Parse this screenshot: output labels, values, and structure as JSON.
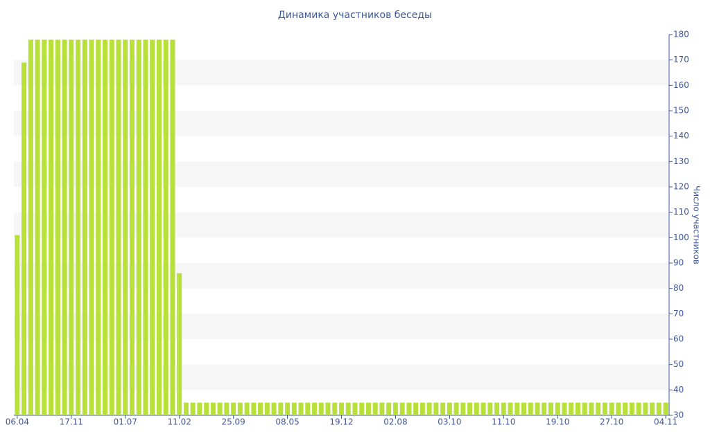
{
  "chart_data": {
    "type": "bar",
    "title": "Динамика участников беседы",
    "y_label": "Число участников",
    "categories": [
      "06.04",
      null,
      null,
      null,
      null,
      null,
      null,
      null,
      "17.11",
      null,
      null,
      null,
      null,
      null,
      null,
      null,
      "01.07",
      null,
      null,
      null,
      null,
      null,
      null,
      null,
      "11.02",
      null,
      null,
      null,
      null,
      null,
      null,
      null,
      "25.09",
      null,
      null,
      null,
      null,
      null,
      null,
      null,
      "08.05",
      null,
      null,
      null,
      null,
      null,
      null,
      null,
      "19.12",
      null,
      null,
      null,
      null,
      null,
      null,
      null,
      "02.08",
      null,
      null,
      null,
      null,
      null,
      null,
      null,
      "03.10",
      null,
      null,
      null,
      null,
      null,
      null,
      null,
      "11.10",
      null,
      null,
      null,
      null,
      null,
      null,
      null,
      "19.10",
      null,
      null,
      null,
      null,
      null,
      null,
      null,
      "27.10",
      null,
      null,
      null,
      null,
      null,
      null,
      null,
      "04.11"
    ],
    "values": [
      101,
      169,
      178,
      178,
      178,
      178,
      178,
      178,
      178,
      178,
      178,
      178,
      178,
      178,
      178,
      178,
      178,
      178,
      178,
      178,
      178,
      178,
      178,
      178,
      86,
      35,
      35,
      35,
      35,
      35,
      35,
      35,
      35,
      35,
      35,
      35,
      35,
      35,
      35,
      35,
      35,
      35,
      35,
      35,
      35,
      35,
      35,
      35,
      35,
      35,
      35,
      35,
      35,
      35,
      35,
      35,
      35,
      35,
      35,
      35,
      35,
      35,
      35,
      35,
      35,
      35,
      35,
      35,
      35,
      35,
      35,
      35,
      35,
      35,
      35,
      35,
      35,
      35,
      35,
      35,
      35,
      35,
      35,
      35,
      35,
      35,
      35,
      35,
      35,
      35,
      35,
      35,
      35,
      35,
      35,
      35,
      35
    ],
    "color": "#b8e03a",
    "ylim": [
      30,
      180
    ],
    "yticks": [
      30,
      40,
      50,
      60,
      70,
      80,
      90,
      100,
      110,
      120,
      130,
      140,
      150,
      160,
      170,
      180
    ],
    "grid": "bands",
    "y_axis_side": "right"
  }
}
